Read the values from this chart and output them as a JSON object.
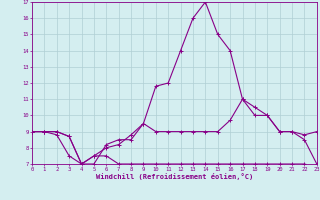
{
  "xlabel": "Windchill (Refroidissement éolien,°C)",
  "background_color": "#d4eef0",
  "grid_color": "#b0cfd4",
  "line_color": "#880088",
  "x_hours": [
    0,
    1,
    2,
    3,
    4,
    5,
    6,
    7,
    8,
    9,
    10,
    11,
    12,
    13,
    14,
    15,
    16,
    17,
    18,
    19,
    20,
    21,
    22,
    23
  ],
  "series1": [
    9,
    9,
    9,
    8.7,
    7,
    7,
    8.2,
    8.5,
    8.5,
    9.5,
    9,
    9,
    9,
    9,
    9,
    9,
    9.7,
    11,
    10,
    10,
    9,
    9,
    8.8,
    9
  ],
  "series2": [
    9,
    9,
    8.8,
    7.5,
    7,
    7.5,
    7.5,
    7,
    7,
    7,
    7,
    7,
    7,
    7,
    7,
    7,
    7,
    7,
    7,
    7,
    7,
    7,
    7,
    6.8
  ],
  "series3": [
    9,
    9,
    9,
    8.7,
    7,
    7.5,
    8,
    8.2,
    8.8,
    9.5,
    11.8,
    12,
    14,
    16,
    17,
    15,
    14,
    11,
    10.5,
    10,
    9,
    9,
    8.5,
    7
  ],
  "ylim": [
    7,
    17
  ],
  "xlim": [
    0,
    23
  ],
  "yticks": [
    7,
    8,
    9,
    10,
    11,
    12,
    13,
    14,
    15,
    16,
    17
  ],
  "xticks": [
    0,
    1,
    2,
    3,
    4,
    5,
    6,
    7,
    8,
    9,
    10,
    11,
    12,
    13,
    14,
    15,
    16,
    17,
    18,
    19,
    20,
    21,
    22,
    23
  ],
  "tick_fontsize": 4,
  "xlabel_fontsize": 5,
  "linewidth": 0.8,
  "markersize": 3
}
